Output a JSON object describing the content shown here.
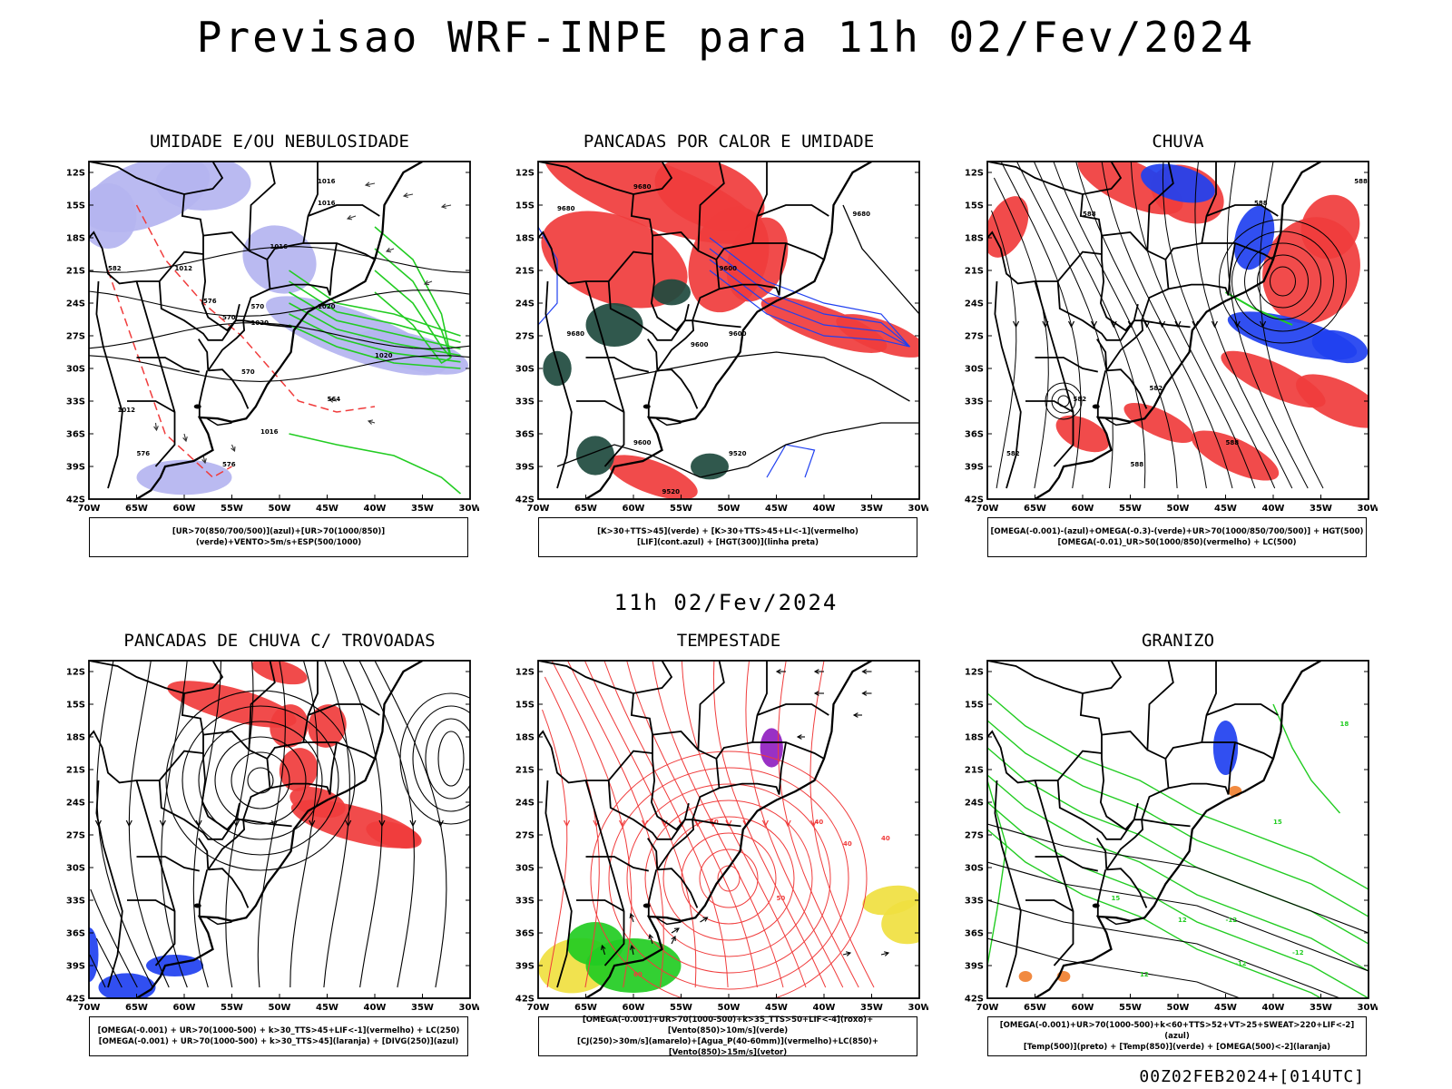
{
  "title": "Previsao WRF-INPE  para 11h 02/Fev/2024",
  "subtitle": "11h 02/Fev/2024",
  "footer": "00Z02FEB2024+[014UTC]",
  "axes": {
    "lat": [
      "12S",
      "15S",
      "18S",
      "21S",
      "24S",
      "27S",
      "30S",
      "33S",
      "36S",
      "39S",
      "42S"
    ],
    "lon": [
      "70W",
      "65W",
      "60W",
      "55W",
      "50W",
      "45W",
      "40W",
      "35W",
      "30W"
    ]
  },
  "colors": {
    "red": "#f03c3c",
    "blue": "#2040f0",
    "green": "#22cc22",
    "lav": "#b4b4f0",
    "dark": "#1e4a3e",
    "yellow": "#f0e040",
    "purple": "#9020c0",
    "orange": "#f08030"
  },
  "panels": [
    {
      "id": "umidade",
      "title": "UMIDADE E/OU NEBULOSIDADE",
      "legend": [
        "[UR>70(850/700/500)](azul)+[UR>70(1000/850)](verde)+VENTO>5m/s+ESP(500/1000)"
      ],
      "labels": [
        "1016",
        "1016",
        "1016",
        "1012",
        "1020",
        "1020",
        "1020",
        "1016",
        "1012",
        "576",
        "570",
        "582",
        "570",
        "576",
        "564",
        "576",
        "570"
      ]
    },
    {
      "id": "pancadas-calor",
      "title": "PANCADAS POR CALOR E UMIDADE",
      "legend": [
        "[K>30+TTS>45](verde) + [K>30+TTS>45+LI<-1](vermelho)",
        "[LIF](cont.azul) + [HGT(300)](linha preta)"
      ],
      "labels": [
        "9680",
        "9680",
        "9680",
        "9600",
        "9600",
        "9600",
        "9520",
        "9600",
        "9520",
        "9680"
      ]
    },
    {
      "id": "chuva",
      "title": "CHUVA",
      "legend": [
        "[OMEGA(-0.001)-(azul)+OMEGA(-0.3)-(verde)+UR>70(1000/850/700/500)] + HGT(500)",
        "[OMEGA(-0.01)_UR>50(1000/850)(vermelho) + LC(500)"
      ],
      "labels": [
        "588",
        "588",
        "588",
        "582",
        "582",
        "588",
        "588",
        "582"
      ]
    },
    {
      "id": "pancadas-trovoadas",
      "title": "PANCADAS DE CHUVA C/ TROVOADAS",
      "legend": [
        "[OMEGA(-0.001) + UR>70(1000-500) + k>30_TTS>45+LIF<-1](vermelho) + LC(250)",
        "[OMEGA(-0.001) + UR>70(1000-500) + k>30_TTS>45](laranja) + [DIVG(250)](azul)"
      ],
      "labels": []
    },
    {
      "id": "tempestade",
      "title": "TEMPESTADE",
      "legend": [
        "[OMEGA(-0.001)+UR>70(1000-500)+k>35_TTS>50+LIF<-4](roxo)+[Vento(850)>10m/s](verde)",
        "[CJ(250)>30m/s](amarelo)+[Agua_P(40-60mm)](vermelho)+LC(850)+[Vento(850)>15m/s](vetor)"
      ],
      "labels": [
        "40",
        "40",
        "40",
        "50",
        "50",
        "60"
      ]
    },
    {
      "id": "granizo",
      "title": "GRANIZO",
      "legend": [
        "[OMEGA(-0.001)+UR>70(1000-500)+k<60+TTS>52+VT>25+SWEAT>220+LIF<-2](azul)",
        "[Temp(500)](preto) + [Temp(850)](verde) + [OMEGA(500)<-2](laranja)"
      ],
      "labels": [
        "-12",
        "-12",
        "-12",
        "18",
        "15",
        "15",
        "12",
        "12"
      ]
    }
  ]
}
